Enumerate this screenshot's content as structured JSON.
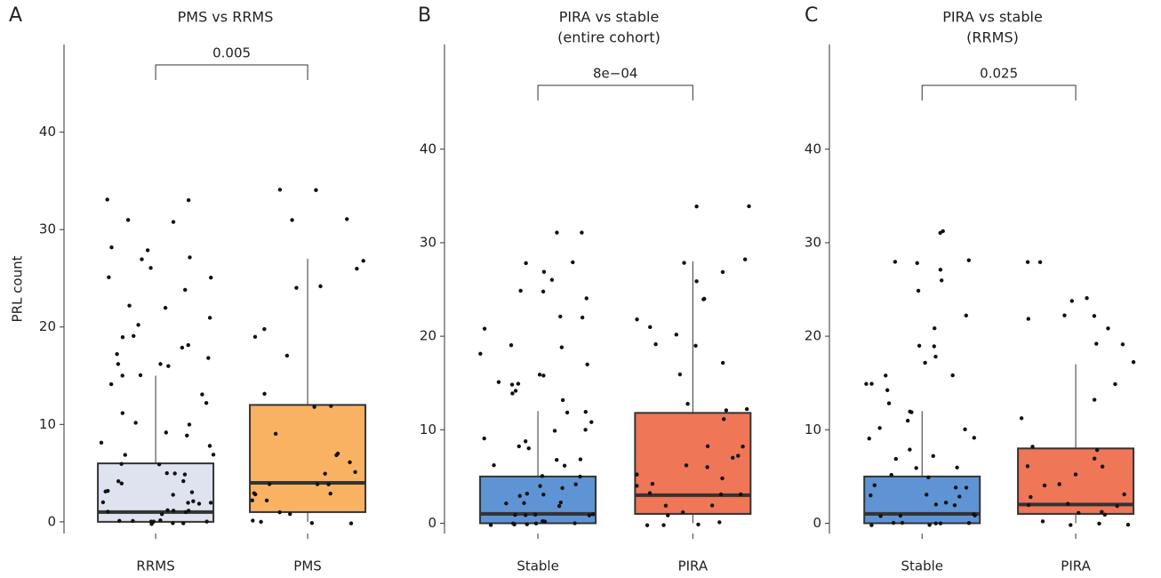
{
  "chart_data": [
    {
      "type": "box",
      "panel_label": "A",
      "title": "PMS vs RRMS",
      "ylabel": "PRL count",
      "categories": [
        "RRMS",
        "PMS"
      ],
      "ylim": [
        -1.2,
        49
      ],
      "yticks": [
        0,
        10,
        20,
        30,
        40
      ],
      "annotation": "0.005",
      "boxes": [
        {
          "color": "#dfe3ef",
          "whisker_low": 0,
          "q1": 0,
          "median": 1,
          "q3": 6,
          "whisker_high": 15,
          "points": [
            33,
            33,
            31,
            31,
            28,
            28,
            27,
            27,
            26,
            25,
            25,
            24,
            22,
            22,
            21,
            20,
            19,
            19,
            18,
            18,
            17,
            17,
            16,
            16,
            16,
            15,
            15,
            14,
            13,
            12,
            11,
            10,
            10,
            9,
            9,
            8,
            8,
            7,
            7,
            6,
            6,
            5,
            5,
            5,
            4,
            4,
            4,
            3,
            3,
            3,
            3,
            2,
            2,
            2,
            2,
            2,
            1,
            1,
            1,
            1,
            1,
            1,
            0,
            0,
            0,
            0,
            0,
            0,
            0,
            0,
            0,
            0
          ]
        },
        {
          "color": "#f9b262",
          "whisker_low": 0,
          "q1": 1,
          "median": 4,
          "q3": 12,
          "whisker_high": 27,
          "points": [
            34,
            34,
            31,
            31,
            27,
            26,
            24,
            24,
            20,
            19,
            17,
            13,
            12,
            12,
            9,
            7,
            7,
            6,
            5,
            5,
            4,
            4,
            4,
            3,
            3,
            3,
            2,
            2,
            1,
            1,
            0,
            0,
            0,
            0
          ]
        }
      ]
    },
    {
      "type": "box",
      "panel_label": "B",
      "title": "PIRA vs stable",
      "subtitle": "(entire cohort)",
      "categories": [
        "Stable",
        "PIRA"
      ],
      "ylim": [
        -1.1,
        51.2
      ],
      "yticks": [
        0,
        10,
        20,
        30,
        40
      ],
      "annotation": "8e−04",
      "boxes": [
        {
          "color": "#5f94d4",
          "whisker_low": 0,
          "q1": 0,
          "median": 1,
          "q3": 5,
          "whisker_high": 12,
          "points": [
            31,
            31,
            28,
            28,
            27,
            26,
            25,
            25,
            24,
            22,
            22,
            21,
            19,
            19,
            18,
            17,
            16,
            16,
            15,
            15,
            15,
            14,
            14,
            13,
            12,
            12,
            11,
            10,
            10,
            9,
            9,
            8,
            8,
            7,
            7,
            6,
            6,
            5,
            5,
            4,
            4,
            4,
            3,
            3,
            3,
            2,
            2,
            2,
            2,
            1,
            1,
            1,
            1,
            1,
            0,
            0,
            0,
            0,
            0,
            0,
            0,
            0
          ]
        },
        {
          "color": "#ef7657",
          "whisker_low": 0,
          "q1": 1,
          "median": 3,
          "q3": 11.8,
          "whisker_high": 28,
          "points": [
            34,
            34,
            28,
            28,
            27,
            26,
            24,
            24,
            22,
            21,
            20,
            19,
            19,
            17,
            16,
            13,
            12,
            12,
            11,
            8,
            8,
            7,
            7,
            6,
            6,
            5,
            5,
            4,
            4,
            3,
            3,
            3,
            2,
            2,
            1,
            1,
            0,
            0,
            0,
            0
          ]
        }
      ]
    },
    {
      "type": "box",
      "panel_label": "C",
      "title": "PIRA vs stable",
      "subtitle": "(RRMS)",
      "categories": [
        "Stable",
        "PIRA"
      ],
      "ylim": [
        -1.1,
        51.2
      ],
      "yticks": [
        0,
        10,
        20,
        30,
        40
      ],
      "annotation": "0.025",
      "boxes": [
        {
          "color": "#5f94d4",
          "whisker_low": 0,
          "q1": 0,
          "median": 1,
          "q3": 5,
          "whisker_high": 12,
          "points": [
            31,
            31,
            28,
            28,
            28,
            27,
            26,
            25,
            22,
            21,
            19,
            19,
            18,
            17,
            16,
            16,
            15,
            15,
            14,
            13,
            12,
            12,
            11,
            10,
            10,
            9,
            9,
            8,
            7,
            7,
            6,
            6,
            5,
            5,
            4,
            4,
            4,
            3,
            3,
            3,
            2,
            2,
            2,
            1,
            1,
            1,
            1,
            0,
            0,
            0,
            0,
            0,
            0,
            0
          ]
        },
        {
          "color": "#ef7657",
          "whisker_low": 0,
          "q1": 1,
          "median": 2,
          "q3": 8,
          "whisker_high": 17,
          "points": [
            28,
            28,
            24,
            24,
            22,
            22,
            22,
            21,
            19,
            19,
            17,
            15,
            13,
            11,
            8,
            8,
            7,
            6,
            6,
            5,
            4,
            4,
            3,
            3,
            2,
            2,
            2,
            1,
            1,
            1,
            0,
            0,
            0,
            0
          ]
        }
      ]
    }
  ]
}
